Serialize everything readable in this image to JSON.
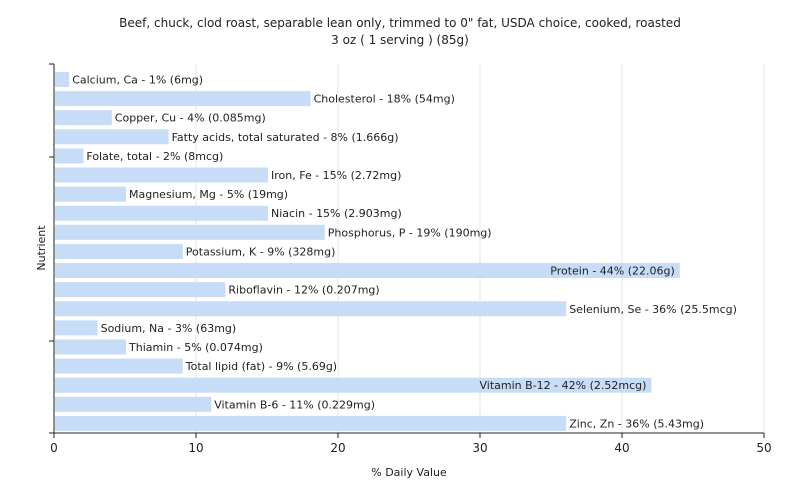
{
  "chart_data": {
    "type": "bar",
    "orientation": "horizontal",
    "title": "Beef, chuck, clod roast, separable lean only, trimmed to 0\" fat, USDA choice, cooked, roasted",
    "subtitle": "3 oz ( 1 serving ) (85g)",
    "xlabel": "% Daily Value",
    "ylabel": "Nutrient",
    "xlim": [
      0,
      50
    ],
    "xticks": [
      0,
      10,
      20,
      30,
      40,
      50
    ],
    "grid": true,
    "bar_color": "#c6dcf7",
    "categories": [
      "Calcium, Ca",
      "Cholesterol",
      "Copper, Cu",
      "Fatty acids, total saturated",
      "Folate, total",
      "Iron, Fe",
      "Magnesium, Mg",
      "Niacin",
      "Phosphorus, P",
      "Potassium, K",
      "Protein",
      "Riboflavin",
      "Selenium, Se",
      "Sodium, Na",
      "Thiamin",
      "Total lipid (fat)",
      "Vitamin B-12",
      "Vitamin B-6",
      "Zinc, Zn"
    ],
    "values": [
      1,
      18,
      4,
      8,
      2,
      15,
      5,
      15,
      19,
      9,
      44,
      12,
      36,
      3,
      5,
      9,
      42,
      11,
      36
    ],
    "labels": [
      "Calcium, Ca - 1% (6mg)",
      "Cholesterol - 18% (54mg)",
      "Copper, Cu - 4% (0.085mg)",
      "Fatty acids, total saturated - 8% (1.666g)",
      "Folate, total - 2% (8mcg)",
      "Iron, Fe - 15% (2.72mg)",
      "Magnesium, Mg - 5% (19mg)",
      "Niacin - 15% (2.903mg)",
      "Phosphorus, P - 19% (190mg)",
      "Potassium, K - 9% (328mg)",
      "Protein - 44% (22.06g)",
      "Riboflavin - 12% (0.207mg)",
      "Selenium, Se - 36% (25.5mcg)",
      "Sodium, Na - 3% (63mg)",
      "Thiamin - 5% (0.074mg)",
      "Total lipid (fat) - 9% (5.69g)",
      "Vitamin B-12 - 42% (2.52mcg)",
      "Vitamin B-6 - 11% (0.229mg)",
      "Zinc, Zn - 36% (5.43mg)"
    ]
  }
}
